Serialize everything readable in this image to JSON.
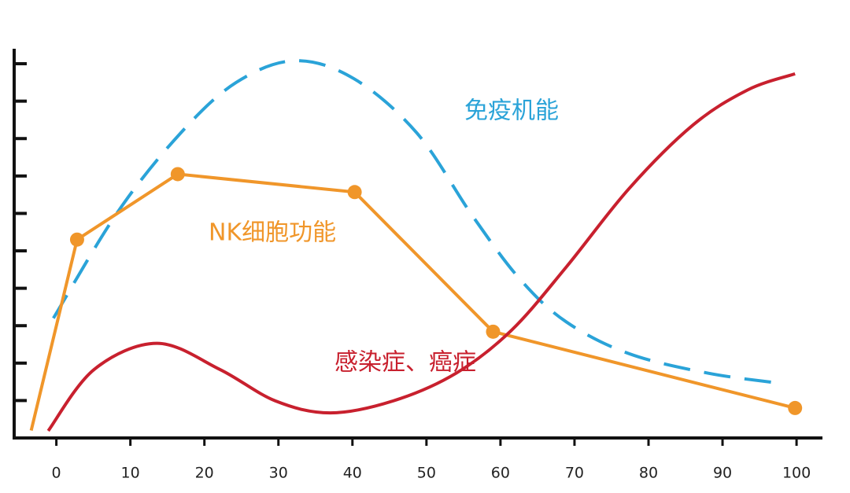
{
  "chart_data": {
    "type": "line",
    "xlim": [
      -5.7,
      103.5
    ],
    "xticks": [
      0,
      10,
      20,
      30,
      40,
      50,
      60,
      70,
      80,
      90,
      100
    ],
    "ylim": [
      0,
      10.4
    ],
    "yticks": [
      1,
      2,
      3,
      4,
      5,
      6,
      7,
      8,
      9,
      10
    ],
    "series": [
      {
        "name": "免疫机能",
        "color": "#2aa3d8",
        "style": "dashed",
        "markers": false,
        "x": [
          -0.4,
          8.3,
          16.8,
          24.3,
          32.2,
          40.2,
          48.7,
          56.2,
          62.6,
          68.9,
          77.4,
          88.1,
          98.2
        ],
        "values": [
          3.2,
          6.04,
          8.15,
          9.5,
          10.08,
          9.6,
          8.15,
          5.94,
          4.25,
          3.1,
          2.25,
          1.73,
          1.45
        ]
      },
      {
        "name": "NK细胞功能",
        "color": "#f0962a",
        "style": "solid",
        "markers": true,
        "x": [
          -3.4,
          2.8,
          16.4,
          40.3,
          59,
          99.8
        ],
        "values": [
          0.2,
          5.3,
          7.05,
          6.57,
          2.84,
          0.8
        ]
      },
      {
        "name": "感染症、癌症",
        "color": "#c8202e",
        "style": "solid",
        "markers": false,
        "x": [
          -1.1,
          5.1,
          13.6,
          22.1,
          29.6,
          37,
          45.5,
          54,
          61.5,
          68.9,
          77.4,
          86,
          93.4,
          99.8
        ],
        "values": [
          0.19,
          1.83,
          2.53,
          1.83,
          0.99,
          0.67,
          0.99,
          1.73,
          2.88,
          4.57,
          6.67,
          8.36,
          9.3,
          9.73
        ]
      }
    ]
  }
}
